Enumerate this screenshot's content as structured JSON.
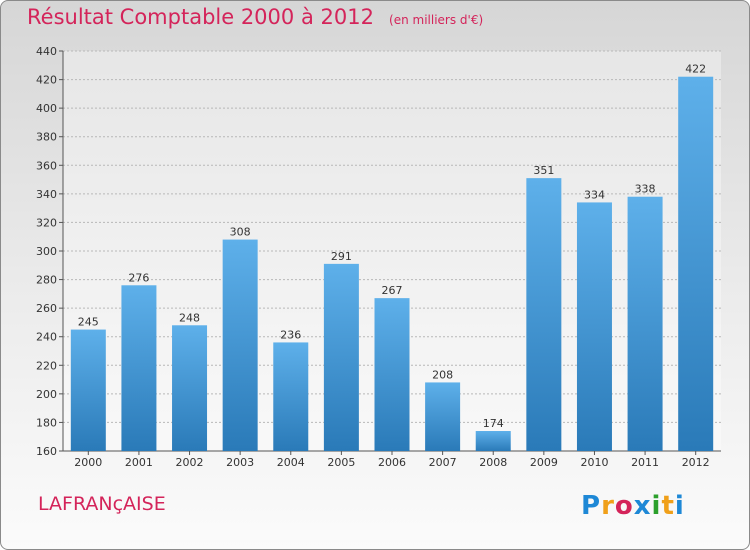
{
  "title": {
    "main": "Résultat Comptable 2000 à 2012",
    "sub": "(en milliers d'€)"
  },
  "commune": "LAFRANçAISE",
  "logo": {
    "letters": [
      "P",
      "r",
      "o",
      "x",
      "i",
      "t",
      "i"
    ],
    "colors": [
      "#1e88d6",
      "#f0a01a",
      "#d4245a",
      "#1e88d6",
      "#2ca02c",
      "#f0a01a",
      "#1e88d6"
    ]
  },
  "colors": {
    "bar_top": "#5eb0ea",
    "bar_bottom": "#2a7ab8",
    "title": "#d4245a"
  },
  "chart_data": {
    "type": "bar",
    "title": "Résultat Comptable 2000 à 2012",
    "xlabel": "",
    "ylabel": "",
    "categories": [
      "2000",
      "2001",
      "2002",
      "2003",
      "2004",
      "2005",
      "2006",
      "2007",
      "2008",
      "2009",
      "2010",
      "2011",
      "2012"
    ],
    "values": [
      245,
      276,
      248,
      308,
      236,
      291,
      267,
      208,
      174,
      351,
      334,
      338,
      422
    ],
    "ylim": [
      160,
      440
    ],
    "yticks": [
      160,
      180,
      200,
      220,
      240,
      260,
      280,
      300,
      320,
      340,
      360,
      380,
      400,
      420,
      440
    ],
    "grid": true
  }
}
